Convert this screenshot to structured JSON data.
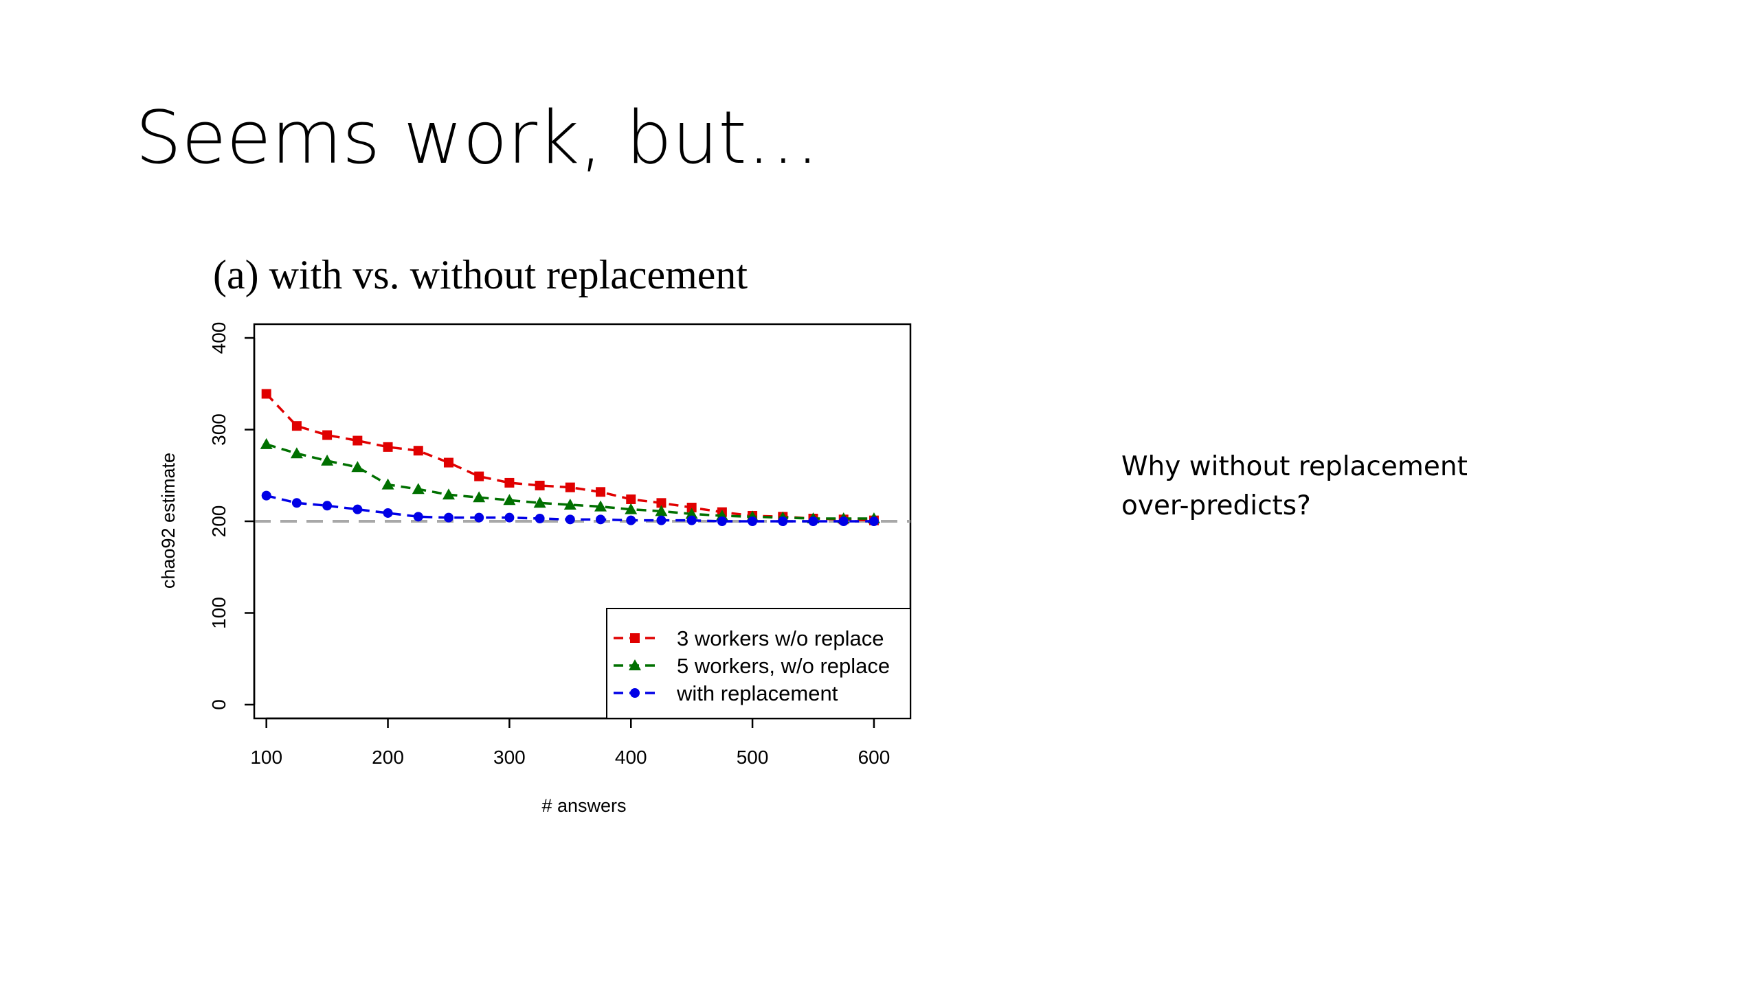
{
  "slide": {
    "title": "Seems work, but…",
    "note_lines": [
      "Why without replacement",
      "over-predicts?"
    ]
  },
  "colors": {
    "series": [
      "#e00000",
      "#007000",
      "#0000e6"
    ],
    "reference_line": "#a8a8a8"
  },
  "chart_data": {
    "type": "line",
    "title": "(a) with vs. without replacement",
    "xlabel": "# answers",
    "ylabel": "chao92 estimate",
    "xlim": [
      90,
      630
    ],
    "ylim": [
      -15,
      415
    ],
    "xticks": [
      100,
      200,
      300,
      400,
      500,
      600
    ],
    "yticks": [
      0,
      100,
      200,
      300,
      400
    ],
    "reference_line": {
      "y": 200,
      "style": "dashed"
    },
    "legend_position": "bottom-right",
    "x": [
      100,
      125,
      150,
      175,
      200,
      225,
      250,
      275,
      300,
      325,
      350,
      375,
      400,
      425,
      450,
      475,
      500,
      525,
      550,
      575,
      600
    ],
    "series": [
      {
        "name": "3 workers w/o replace",
        "marker": "square",
        "values": [
          339,
          304,
          294,
          288,
          281,
          277,
          264,
          249,
          242,
          239,
          237,
          232,
          224,
          220,
          215,
          210,
          206,
          205,
          203,
          202,
          201
        ]
      },
      {
        "name": "5 workers, w/o replace",
        "marker": "triangle",
        "values": [
          284,
          274,
          266,
          259,
          240,
          235,
          229,
          226,
          223,
          220,
          218,
          216,
          213,
          211,
          208,
          206,
          205,
          204,
          203,
          203,
          203
        ]
      },
      {
        "name": "with replacement",
        "marker": "circle",
        "values": [
          228,
          220,
          217,
          213,
          209,
          205,
          204,
          204,
          204,
          203,
          202,
          202,
          201,
          201,
          201,
          200,
          200,
          200,
          200,
          200,
          200
        ]
      }
    ]
  }
}
